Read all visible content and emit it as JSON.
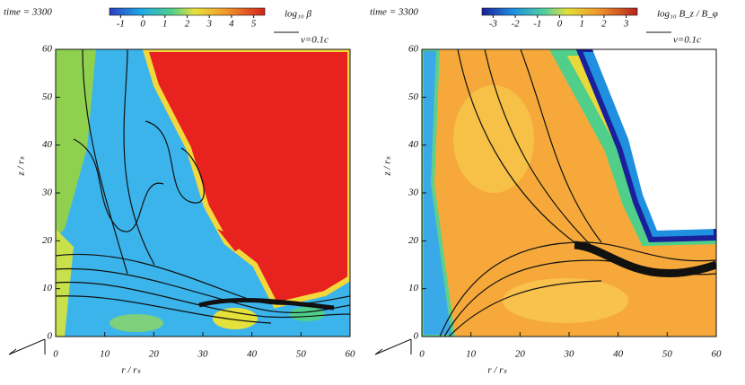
{
  "chart_data": [
    {
      "type": "colormap",
      "title": "time = 3300",
      "colorbar": {
        "label": "log₁₀ β",
        "lim": [
          -1.5,
          5.5
        ],
        "ticks": [
          -1,
          0,
          1,
          2,
          3,
          4,
          5
        ]
      },
      "arrow_label": "v=0.1c",
      "xlabel": "r / rₛ",
      "ylabel": "z / rₛ",
      "xlim": [
        0,
        60
      ],
      "ylim": [
        0,
        60
      ],
      "xticks": [
        0,
        10,
        20,
        30,
        40,
        50,
        60
      ],
      "yticks": [
        0,
        10,
        20,
        30,
        40,
        50,
        60
      ]
    },
    {
      "type": "colormap",
      "title": "time = 3300",
      "colorbar": {
        "label": "log₁₀ B_z / B_φ",
        "lim": [
          -3.5,
          3.5
        ],
        "ticks": [
          -3,
          -2,
          -1,
          0,
          1,
          2,
          3
        ]
      },
      "arrow_label": "v=0.1c",
      "xlabel": "r / rₛ",
      "ylabel": "z / rₛ",
      "xlim": [
        0,
        60
      ],
      "ylim": [
        0,
        60
      ],
      "xticks": [
        0,
        10,
        20,
        30,
        40,
        50,
        60
      ],
      "yticks": [
        0,
        10,
        20,
        30,
        40,
        50,
        60
      ]
    }
  ]
}
